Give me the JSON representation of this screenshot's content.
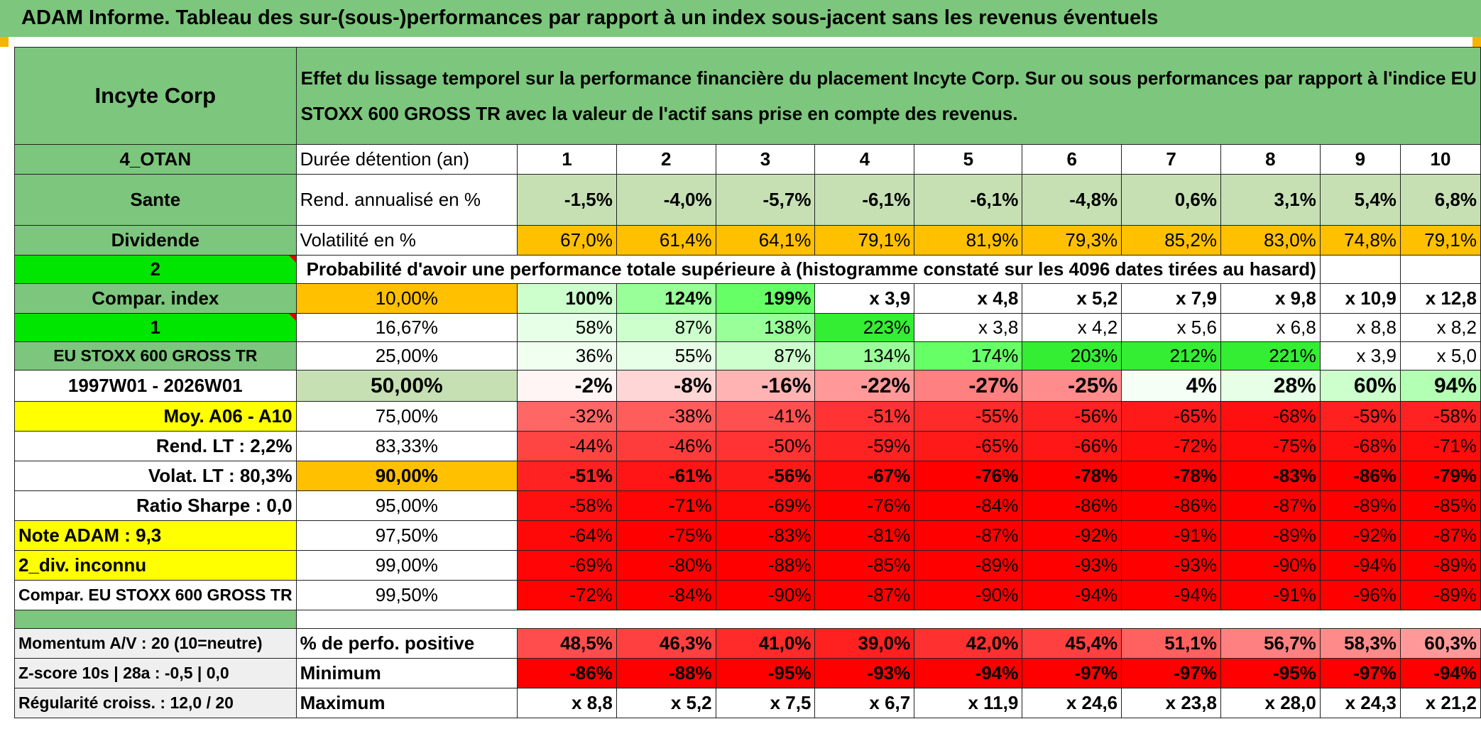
{
  "title": "ADAM Informe. Tableau des sur-(sous-)performances par rapport à un index sous-jacent sans les revenus éventuels",
  "left": {
    "company": "Incyte Corp",
    "code": "4_OTAN",
    "sector": "Sante",
    "dividend": "Dividende",
    "num2": "2",
    "compar_index": "Compar. index",
    "num1": "1",
    "index_name": "EU STOXX 600 GROSS TR",
    "period": "1997W01 - 2026W01",
    "moy": "Moy. A06 - A10",
    "rend_lt": "Rend. LT :   2,2%",
    "volat_lt": "Volat. LT :   80,3%",
    "sharpe": "Ratio Sharpe :    0,0",
    "note": "Note ADAM : 9,3",
    "div_inconnu": "2_div. inconnu",
    "compar_full": "Compar. EU STOXX 600 GROSS TR",
    "momentum": "Momentum A/V : 20 (10=neutre)",
    "zscore": "Z-score 10s | 28a : -0,5 | 0,0",
    "regularite": "Régularité croiss. : 12,0 / 20"
  },
  "header_text": "Effet du lissage temporel sur la performance financière du placement Incyte Corp. Sur ou sous performances par rapport à l'indice EU STOXX 600 GROSS TR avec la valeur de l'actif sans prise en compte des revenus.",
  "labels": {
    "duree": "Durée détention (an)",
    "rend": "Rend. annualisé en %",
    "vol": "Volatilité en %",
    "proba": "Probabilité d'avoir une performance totale supérieure à (histogramme constaté sur les 4096 dates tirées au hasard)",
    "positive": "% de perfo. positive",
    "minimum": "Minimum",
    "maximum": "Maximum"
  },
  "years": [
    "1",
    "2",
    "3",
    "4",
    "5",
    "6",
    "7",
    "8",
    "9",
    "10"
  ],
  "rend": [
    "-1,5%",
    "-4,0%",
    "-5,7%",
    "-6,1%",
    "-6,1%",
    "-4,8%",
    "0,6%",
    "3,1%",
    "5,4%",
    "6,8%"
  ],
  "vol": [
    "67,0%",
    "61,4%",
    "64,1%",
    "79,1%",
    "81,9%",
    "79,3%",
    "85,2%",
    "83,0%",
    "74,8%",
    "79,1%"
  ],
  "proba_rows": [
    {
      "pct": "10,00%",
      "values": [
        "100%",
        "124%",
        "199%",
        "x 3,9",
        "x 4,8",
        "x 5,2",
        "x 7,9",
        "x 9,8",
        "x 10,9",
        "x 12,8"
      ]
    },
    {
      "pct": "16,67%",
      "values": [
        "58%",
        "87%",
        "138%",
        "223%",
        "x 3,8",
        "x 4,2",
        "x 5,6",
        "x 6,8",
        "x 8,8",
        "x 8,2"
      ]
    },
    {
      "pct": "25,00%",
      "values": [
        "36%",
        "55%",
        "87%",
        "134%",
        "174%",
        "203%",
        "212%",
        "221%",
        "x 3,9",
        "x 5,0"
      ]
    },
    {
      "pct": "50,00%",
      "values": [
        "-2%",
        "-8%",
        "-16%",
        "-22%",
        "-27%",
        "-25%",
        "4%",
        "28%",
        "60%",
        "94%"
      ]
    },
    {
      "pct": "75,00%",
      "values": [
        "-32%",
        "-38%",
        "-41%",
        "-51%",
        "-55%",
        "-56%",
        "-65%",
        "-68%",
        "-59%",
        "-58%"
      ]
    },
    {
      "pct": "83,33%",
      "values": [
        "-44%",
        "-46%",
        "-50%",
        "-59%",
        "-65%",
        "-66%",
        "-72%",
        "-75%",
        "-68%",
        "-71%"
      ]
    },
    {
      "pct": "90,00%",
      "values": [
        "-51%",
        "-61%",
        "-56%",
        "-67%",
        "-76%",
        "-78%",
        "-78%",
        "-83%",
        "-86%",
        "-79%"
      ]
    },
    {
      "pct": "95,00%",
      "values": [
        "-58%",
        "-71%",
        "-69%",
        "-76%",
        "-84%",
        "-86%",
        "-86%",
        "-87%",
        "-89%",
        "-85%"
      ]
    },
    {
      "pct": "97,50%",
      "values": [
        "-64%",
        "-75%",
        "-83%",
        "-81%",
        "-87%",
        "-92%",
        "-91%",
        "-89%",
        "-92%",
        "-87%"
      ]
    },
    {
      "pct": "99,00%",
      "values": [
        "-69%",
        "-80%",
        "-88%",
        "-85%",
        "-89%",
        "-93%",
        "-93%",
        "-90%",
        "-94%",
        "-89%"
      ]
    },
    {
      "pct": "99,50%",
      "values": [
        "-72%",
        "-84%",
        "-90%",
        "-87%",
        "-90%",
        "-94%",
        "-94%",
        "-91%",
        "-96%",
        "-89%"
      ]
    }
  ],
  "positive": [
    "48,5%",
    "46,3%",
    "41,0%",
    "39,0%",
    "42,0%",
    "45,4%",
    "51,1%",
    "56,7%",
    "58,3%",
    "60,3%"
  ],
  "minimum": [
    "-86%",
    "-88%",
    "-95%",
    "-93%",
    "-94%",
    "-97%",
    "-97%",
    "-95%",
    "-97%",
    "-94%"
  ],
  "maximum": [
    "x 8,8",
    "x 5,2",
    "x 7,5",
    "x 6,7",
    "x 11,9",
    "x 24,6",
    "x 23,8",
    "x 28,0",
    "x 24,3",
    "x 21,2"
  ],
  "cell_colors": {
    "proba": [
      [
        "#ccffcc",
        "#99ff99",
        "#66ff66",
        "#ffffff",
        "#ffffff",
        "#ffffff",
        "#ffffff",
        "#ffffff",
        "#ffffff",
        "#ffffff"
      ],
      [
        "#e6ffe6",
        "#ccffcc",
        "#99ff99",
        "#33ee33",
        "#ffffff",
        "#ffffff",
        "#ffffff",
        "#ffffff",
        "#ffffff",
        "#ffffff"
      ],
      [
        "#f0fff0",
        "#e6ffe6",
        "#ccffcc",
        "#99ff99",
        "#66ff66",
        "#33ee33",
        "#33ee33",
        "#33ee33",
        "#ffffff",
        "#ffffff"
      ],
      [
        "#fff5f5",
        "#ffd6d6",
        "#ffb3b3",
        "#ff9999",
        "#ff8080",
        "#ff8c8c",
        "#f5fff5",
        "#e6ffe6",
        "#ccffcc",
        "#b3ffb3"
      ],
      [
        "#ff6666",
        "#ff5c5c",
        "#ff5050",
        "#ff3333",
        "#ff2a2a",
        "#ff2222",
        "#ff1a1a",
        "#ff1010",
        "#ff2020",
        "#ff2222"
      ],
      [
        "#ff4444",
        "#ff3c3c",
        "#ff3333",
        "#ff2222",
        "#ff1a1a",
        "#ff1616",
        "#ff0e0e",
        "#ff0a0a",
        "#ff1010",
        "#ff0c0c"
      ],
      [
        "#ff2222",
        "#ff1515",
        "#ff1a1a",
        "#ff0a0a",
        "#ff0000",
        "#ff0000",
        "#ff0000",
        "#ff0000",
        "#ff0000",
        "#ff0000"
      ],
      [
        "#ff1010",
        "#ff0505",
        "#ff0808",
        "#ff0000",
        "#ff0000",
        "#ff0000",
        "#ff0000",
        "#ff0000",
        "#ff0000",
        "#ff0000"
      ],
      [
        "#ff0808",
        "#ff0000",
        "#ff0000",
        "#ff0000",
        "#ff0000",
        "#ff0000",
        "#ff0000",
        "#ff0000",
        "#ff0000",
        "#ff0000"
      ],
      [
        "#ff0505",
        "#ff0000",
        "#ff0000",
        "#ff0000",
        "#ff0000",
        "#ff0000",
        "#ff0000",
        "#ff0000",
        "#ff0000",
        "#ff0000"
      ],
      [
        "#ff0303",
        "#ff0000",
        "#ff0000",
        "#ff0000",
        "#ff0000",
        "#ff0000",
        "#ff0000",
        "#ff0000",
        "#ff0000",
        "#ff0000"
      ]
    ],
    "positive": [
      "#ff4d4d",
      "#ff4040",
      "#ff2a2a",
      "#ff2020",
      "#ff3030",
      "#ff4040",
      "#ff6060",
      "#ff8080",
      "#ff8a8a",
      "#ff9999"
    ],
    "minimum": [
      "#ff0000",
      "#ff0000",
      "#ff0000",
      "#ff0000",
      "#ff0000",
      "#ff0000",
      "#ff0000",
      "#ff0000",
      "#ff0000",
      "#ff0000"
    ]
  }
}
